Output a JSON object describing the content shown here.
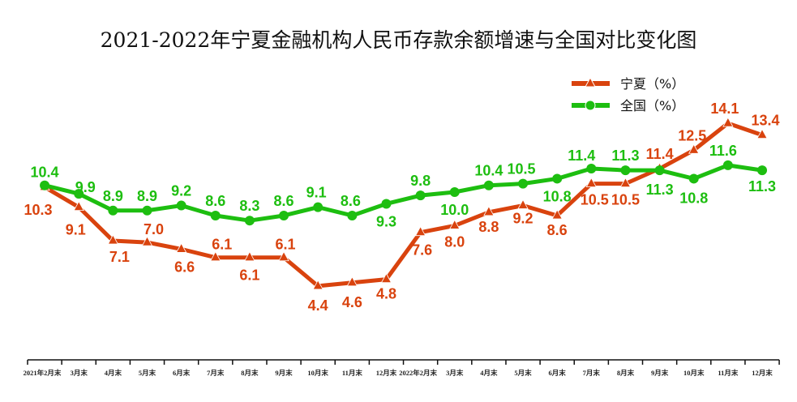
{
  "chart_data": {
    "type": "line",
    "title": "2021-2022年宁夏金融机构人民币存款余额增速与全国对比变化图",
    "categories": [
      "2021年2月末",
      "3月末",
      "4月末",
      "5月末",
      "6月末",
      "7月末",
      "8月末",
      "9月末",
      "10月末",
      "11月末",
      "12月末",
      "2022年2月末",
      "3月末",
      "4月末",
      "5月末",
      "6月末",
      "7月末",
      "8月末",
      "9月末",
      "10月末",
      "11月末",
      "12月末"
    ],
    "series": [
      {
        "name": "宁夏（%）",
        "color": "#D9430E",
        "marker": "triangle",
        "values": [
          10.3,
          9.1,
          7.1,
          7.0,
          6.6,
          6.1,
          6.1,
          6.1,
          4.4,
          4.6,
          4.8,
          7.6,
          8.0,
          8.8,
          9.2,
          8.6,
          10.5,
          10.5,
          11.4,
          12.5,
          14.1,
          13.4
        ]
      },
      {
        "name": "全国（%）",
        "color": "#1DBE10",
        "marker": "circle",
        "values": [
          10.4,
          9.9,
          8.9,
          8.9,
          9.2,
          8.6,
          8.3,
          8.6,
          9.1,
          8.6,
          9.3,
          9.8,
          10.0,
          10.4,
          10.5,
          10.8,
          11.4,
          11.3,
          11.3,
          10.8,
          11.6,
          11.3
        ]
      }
    ],
    "xlabel": "",
    "ylabel": "",
    "ylim": [
      0,
      20
    ],
    "grid": false,
    "legend": "top-right"
  }
}
